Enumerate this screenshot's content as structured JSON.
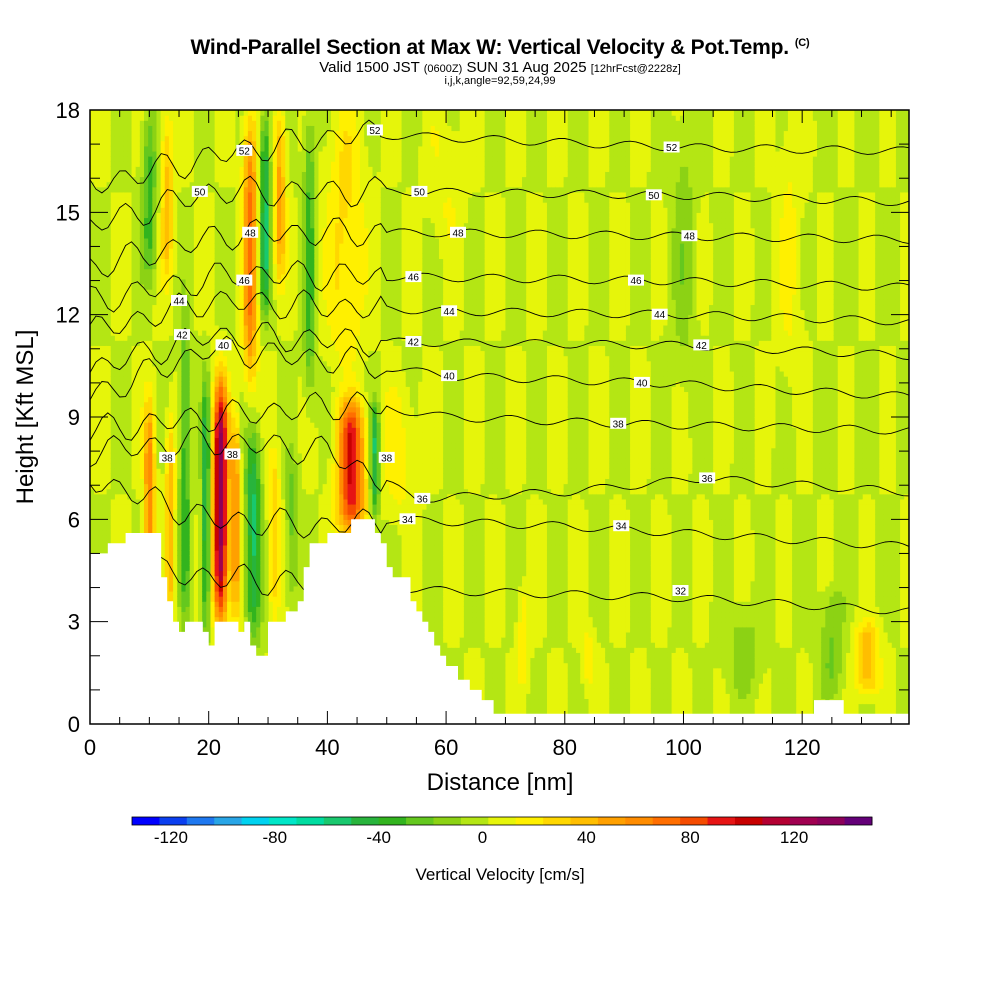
{
  "header": {
    "title": "Wind-Parallel Section at Max W: Vertical Velocity & Pot.Temp.",
    "copyright": "(C)",
    "subtitle_valid": "Valid 1500 JST",
    "subtitle_utc": "(0600Z)",
    "subtitle_date": "SUN 31 Aug 2025",
    "subtitle_fcst": "[12hrFcst@2228z]",
    "subtitle_indices": "i,j,k,angle=92,59,24,99"
  },
  "chart_data": {
    "type": "heatmap",
    "xlabel": "Distance [nm]",
    "ylabel": "Height [Kft MSL]",
    "xlim": [
      0,
      138
    ],
    "ylim": [
      0,
      18
    ],
    "x_ticks": [
      0,
      20,
      40,
      60,
      80,
      100,
      120
    ],
    "y_ticks": [
      0,
      3,
      6,
      9,
      12,
      15,
      18
    ],
    "background_w": 2,
    "terrain": [
      [
        0,
        5.0
      ],
      [
        2,
        5.0
      ],
      [
        3,
        5.3
      ],
      [
        5,
        5.3
      ],
      [
        6,
        5.6
      ],
      [
        11,
        5.6
      ],
      [
        12,
        4.3
      ],
      [
        13,
        3.6
      ],
      [
        14,
        3.0
      ],
      [
        15,
        2.7
      ],
      [
        16,
        3.0
      ],
      [
        18,
        3.0
      ],
      [
        19,
        2.7
      ],
      [
        20,
        2.3
      ],
      [
        21,
        3.0
      ],
      [
        24,
        3.0
      ],
      [
        25,
        2.7
      ],
      [
        26,
        3.0
      ],
      [
        27,
        2.3
      ],
      [
        28,
        2.0
      ],
      [
        29,
        2.0
      ],
      [
        30,
        3.0
      ],
      [
        32,
        3.0
      ],
      [
        33,
        3.3
      ],
      [
        35,
        3.6
      ],
      [
        36,
        4.6
      ],
      [
        37,
        5.3
      ],
      [
        40,
        5.6
      ],
      [
        43,
        5.6
      ],
      [
        44,
        6.0
      ],
      [
        47,
        6.0
      ],
      [
        48,
        5.6
      ],
      [
        49,
        5.3
      ],
      [
        50,
        4.6
      ],
      [
        51,
        4.3
      ],
      [
        53,
        4.3
      ],
      [
        54,
        3.6
      ],
      [
        55,
        3.3
      ],
      [
        56,
        3.0
      ],
      [
        57,
        2.7
      ],
      [
        58,
        2.3
      ],
      [
        59,
        2.0
      ],
      [
        60,
        1.7
      ],
      [
        62,
        1.3
      ],
      [
        64,
        1.0
      ],
      [
        66,
        0.7
      ],
      [
        68,
        0.3
      ],
      [
        120,
        0.3
      ],
      [
        122,
        0.7
      ],
      [
        125,
        0.7
      ],
      [
        127,
        0.3
      ],
      [
        138,
        0.3
      ]
    ],
    "w_features": [
      {
        "x": 10,
        "z0": 3.0,
        "z1": 9.5,
        "w": 60,
        "sx": 0.9
      },
      {
        "x": 13.5,
        "z0": 3.0,
        "z1": 9.0,
        "w": 40,
        "sx": 0.8
      },
      {
        "x": 16,
        "z0": 3.0,
        "z1": 12.0,
        "w": -40,
        "sx": 0.9
      },
      {
        "x": 22,
        "z0": 3.0,
        "z1": 10.0,
        "w": 135,
        "sx": 1.2
      },
      {
        "x": 19.5,
        "z0": 2.5,
        "z1": 10.0,
        "w": -55,
        "sx": 0.7
      },
      {
        "x": 24.5,
        "z0": 3.0,
        "z1": 9.0,
        "w": 55,
        "sx": 0.8
      },
      {
        "x": 27.5,
        "z0": 2.5,
        "z1": 8.5,
        "w": -55,
        "sx": 1.3
      },
      {
        "x": 31,
        "z0": 3.0,
        "z1": 8.0,
        "w": 30,
        "sx": 1.0
      },
      {
        "x": 34,
        "z0": 3.5,
        "z1": 8.0,
        "w": -25,
        "sx": 1.0
      },
      {
        "x": 44,
        "z0": 5.5,
        "z1": 9.5,
        "w": 95,
        "sx": 2.2
      },
      {
        "x": 48,
        "z0": 6.0,
        "z1": 9.5,
        "w": -55,
        "sx": 0.8
      },
      {
        "x": 52,
        "z0": 6.0,
        "z1": 10.0,
        "w": 15,
        "sx": 3.0
      },
      {
        "x": 27,
        "z0": 10.0,
        "z1": 18.0,
        "w": 65,
        "sx": 1.2
      },
      {
        "x": 29.5,
        "z0": 12.0,
        "z1": 18.0,
        "w": -55,
        "sx": 0.9
      },
      {
        "x": 32,
        "z0": 13.0,
        "z1": 18.0,
        "w": 45,
        "sx": 1.0
      },
      {
        "x": 10,
        "z0": 13.0,
        "z1": 18.0,
        "w": -35,
        "sx": 1.2
      },
      {
        "x": 13,
        "z0": 13.0,
        "z1": 18.0,
        "w": 35,
        "sx": 1.0
      },
      {
        "x": 37,
        "z0": 9.5,
        "z1": 18.0,
        "w": -35,
        "sx": 1.0
      },
      {
        "x": 43,
        "z0": 10.5,
        "z1": 18.0,
        "w": 25,
        "sx": 3.0
      },
      {
        "x": 73,
        "z0": 1.0,
        "z1": 4.0,
        "w": 18,
        "sx": 1.0
      },
      {
        "x": 84,
        "z0": 1.0,
        "z1": 3.0,
        "w": 15,
        "sx": 1.0
      },
      {
        "x": 131,
        "z0": 0.8,
        "z1": 3.0,
        "w": 40,
        "sx": 2.0
      },
      {
        "x": 125,
        "z0": 0.8,
        "z1": 4.0,
        "w": -22,
        "sx": 2.0
      },
      {
        "x": 110,
        "z0": 0.8,
        "z1": 3.5,
        "w": -15,
        "sx": 3.0
      },
      {
        "x": 100,
        "z0": 10.0,
        "z1": 18.0,
        "w": -15,
        "sx": 2.0
      },
      {
        "x": 118,
        "z0": 10.0,
        "z1": 18.0,
        "w": 12,
        "sx": 2.0
      },
      {
        "x": 60,
        "z0": 14.0,
        "z1": 18.0,
        "w": 10,
        "sx": 3.0
      }
    ],
    "isentropes": [
      {
        "theta": 32,
        "heights": [
          [
            0,
            4.6
          ],
          [
            30,
            4.2
          ],
          [
            60,
            3.9
          ],
          [
            100,
            3.7
          ],
          [
            138,
            3.3
          ]
        ]
      },
      {
        "theta": 34,
        "heights": [
          [
            0,
            7.2
          ],
          [
            20,
            6.0
          ],
          [
            40,
            5.8
          ],
          [
            50,
            6.0
          ],
          [
            80,
            5.8
          ],
          [
            138,
            5.2
          ]
        ]
      },
      {
        "theta": 36,
        "heights": [
          [
            0,
            8.0
          ],
          [
            20,
            8.3
          ],
          [
            40,
            8.0
          ],
          [
            55,
            6.6
          ],
          [
            80,
            6.8
          ],
          [
            103,
            7.2
          ],
          [
            138,
            6.8
          ]
        ]
      },
      {
        "theta": 38,
        "heights": [
          [
            0,
            8.6
          ],
          [
            20,
            9.0
          ],
          [
            45,
            9.4
          ],
          [
            60,
            9.0
          ],
          [
            90,
            8.8
          ],
          [
            138,
            8.6
          ]
        ]
      },
      {
        "theta": 40,
        "heights": [
          [
            0,
            9.6
          ],
          [
            20,
            11.0
          ],
          [
            45,
            10.6
          ],
          [
            60,
            10.2
          ],
          [
            95,
            10.0
          ],
          [
            138,
            9.6
          ]
        ]
      },
      {
        "theta": 42,
        "heights": [
          [
            0,
            10.4
          ],
          [
            20,
            11.4
          ],
          [
            50,
            11.2
          ],
          [
            100,
            11.1
          ],
          [
            138,
            10.8
          ]
        ]
      },
      {
        "theta": 44,
        "heights": [
          [
            0,
            11.5
          ],
          [
            20,
            12.4
          ],
          [
            60,
            12.1
          ],
          [
            100,
            12.0
          ],
          [
            138,
            11.8
          ]
        ]
      },
      {
        "theta": 46,
        "heights": [
          [
            0,
            12.4
          ],
          [
            25,
            13.2
          ],
          [
            55,
            13.1
          ],
          [
            95,
            13.0
          ],
          [
            138,
            12.8
          ]
        ]
      },
      {
        "theta": 48,
        "heights": [
          [
            0,
            13.4
          ],
          [
            25,
            14.4
          ],
          [
            60,
            14.4
          ],
          [
            100,
            14.3
          ],
          [
            138,
            14.2
          ]
        ]
      },
      {
        "theta": 50,
        "heights": [
          [
            0,
            14.6
          ],
          [
            20,
            15.6
          ],
          [
            55,
            15.6
          ],
          [
            100,
            15.5
          ],
          [
            138,
            15.3
          ]
        ]
      },
      {
        "theta": 52,
        "heights": [
          [
            0,
            15.8
          ],
          [
            25,
            16.8
          ],
          [
            45,
            17.3
          ],
          [
            100,
            16.9
          ],
          [
            138,
            16.8
          ]
        ]
      }
    ],
    "contour_labels": [
      {
        "text": "52",
        "x": 26,
        "z": 16.8
      },
      {
        "text": "52",
        "x": 48,
        "z": 17.4
      },
      {
        "text": "52",
        "x": 98,
        "z": 16.9
      },
      {
        "text": "50",
        "x": 18.5,
        "z": 15.6
      },
      {
        "text": "50",
        "x": 55.5,
        "z": 15.6
      },
      {
        "text": "50",
        "x": 95,
        "z": 15.5
      },
      {
        "text": "48",
        "x": 27,
        "z": 14.4
      },
      {
        "text": "48",
        "x": 62,
        "z": 14.4
      },
      {
        "text": "48",
        "x": 101,
        "z": 14.3
      },
      {
        "text": "46",
        "x": 26,
        "z": 13.0
      },
      {
        "text": "46",
        "x": 54.5,
        "z": 13.1
      },
      {
        "text": "46",
        "x": 92,
        "z": 13.0
      },
      {
        "text": "44",
        "x": 15,
        "z": 12.4
      },
      {
        "text": "44",
        "x": 60.5,
        "z": 12.1
      },
      {
        "text": "44",
        "x": 96,
        "z": 12.0
      },
      {
        "text": "42",
        "x": 15.5,
        "z": 11.4
      },
      {
        "text": "42",
        "x": 54.5,
        "z": 11.2
      },
      {
        "text": "42",
        "x": 103,
        "z": 11.1
      },
      {
        "text": "40",
        "x": 22.5,
        "z": 11.1
      },
      {
        "text": "40",
        "x": 60.5,
        "z": 10.2
      },
      {
        "text": "40",
        "x": 93,
        "z": 10.0
      },
      {
        "text": "38",
        "x": 13,
        "z": 7.8
      },
      {
        "text": "38",
        "x": 24,
        "z": 7.9
      },
      {
        "text": "38",
        "x": 50,
        "z": 7.8
      },
      {
        "text": "38",
        "x": 89,
        "z": 8.8
      },
      {
        "text": "36",
        "x": 56,
        "z": 6.6
      },
      {
        "text": "36",
        "x": 104,
        "z": 7.2
      },
      {
        "text": "34",
        "x": 53.5,
        "z": 6.0
      },
      {
        "text": "34",
        "x": 89.5,
        "z": 5.8
      },
      {
        "text": "32",
        "x": 99.5,
        "z": 3.9
      }
    ],
    "colorbar": {
      "label": "Vertical Velocity [cm/s]",
      "min": -135,
      "max": 150,
      "tick_values": [
        -120,
        -80,
        -40,
        0,
        40,
        80,
        120
      ],
      "tick_labels": [
        "-120",
        "-80",
        "-40",
        "0",
        "40",
        "80",
        "120"
      ],
      "colors": [
        "#0000ff",
        "#0a3ff0",
        "#1e78f0",
        "#28a5e6",
        "#00d2f0",
        "#00e6c8",
        "#00dca0",
        "#19c86e",
        "#28b43c",
        "#32b41e",
        "#64c81e",
        "#8cd214",
        "#b4e614",
        "#e6f50a",
        "#fff000",
        "#ffd700",
        "#ffbe00",
        "#ffa000",
        "#ff8c00",
        "#ff6e00",
        "#f54b00",
        "#e61414",
        "#c80000",
        "#b40032",
        "#a00050",
        "#8c005a",
        "#640078"
      ]
    }
  }
}
